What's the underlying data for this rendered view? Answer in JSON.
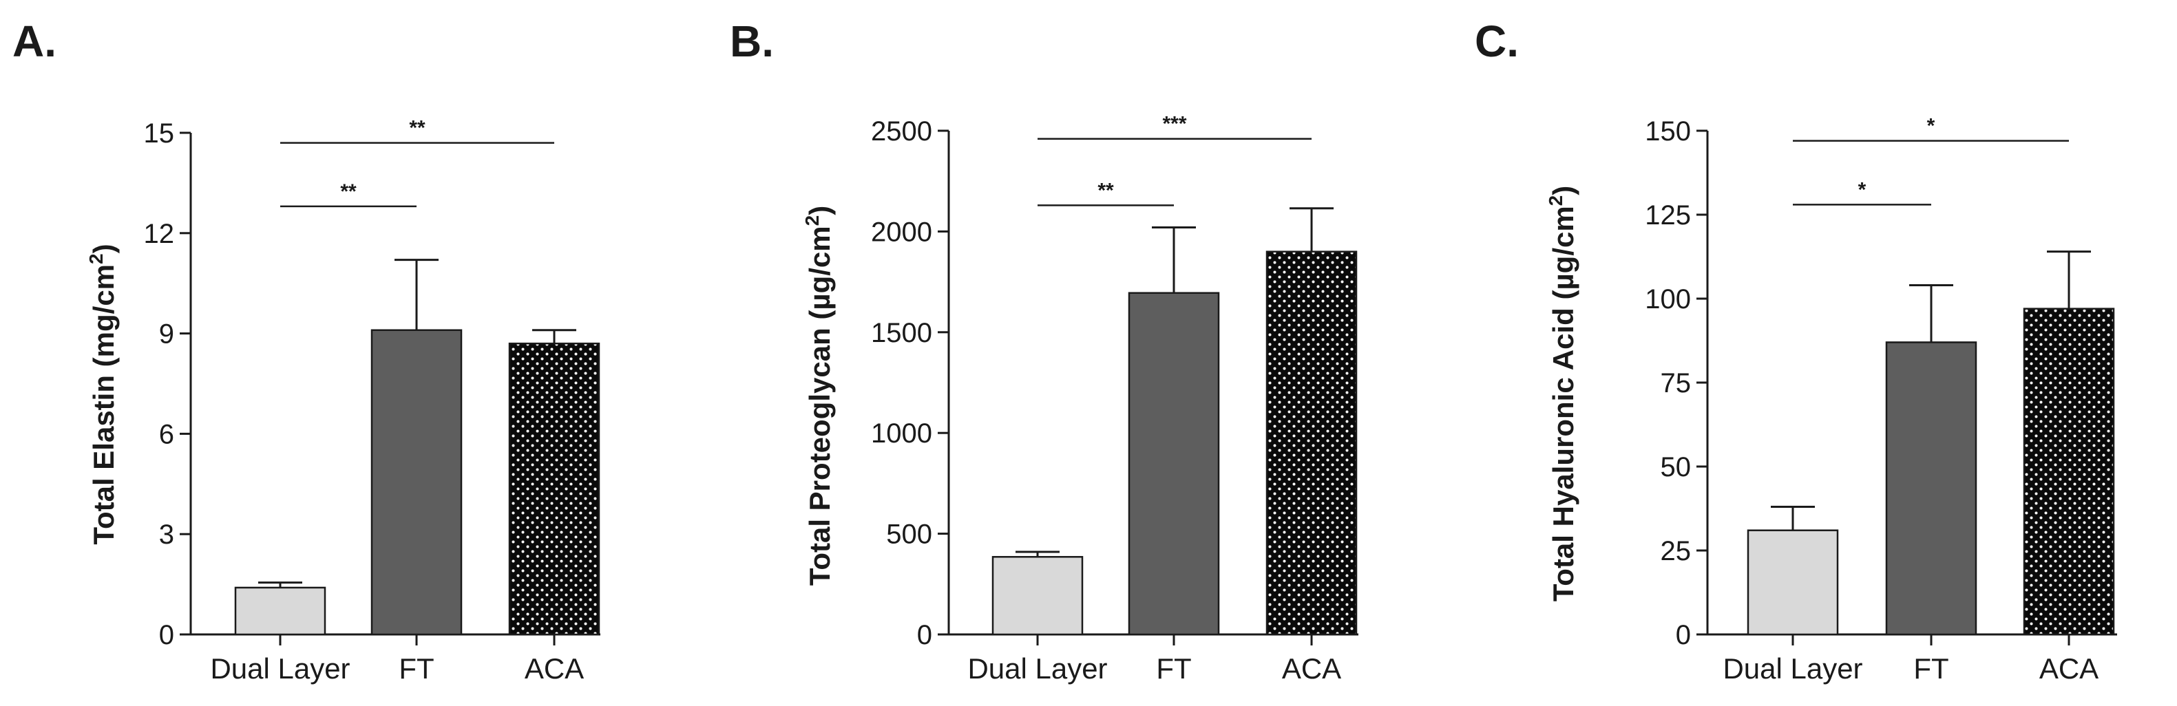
{
  "panels": [
    {
      "label": "A.",
      "chart_data": {
        "type": "bar",
        "categories": [
          "Dual Layer",
          "FT",
          "ACA"
        ],
        "values": [
          1.4,
          9.1,
          8.7
        ],
        "errors": [
          0.15,
          2.1,
          0.4
        ],
        "ylabel_main": "Total Elastin (mg/cm",
        "ylabel_sup": "2",
        "ylabel_tail": ")",
        "xlabel": "",
        "ylim": [
          0,
          15
        ],
        "yticks": [
          "0",
          "3",
          "6",
          "9",
          "12",
          "15"
        ],
        "significance": [
          {
            "from": 0,
            "to": 1,
            "label": "**",
            "y": 12.8
          },
          {
            "from": 0,
            "to": 2,
            "label": "**",
            "y": 14.7
          }
        ],
        "bar_styles": [
          "light-gray",
          "dark-gray",
          "black-dotted"
        ],
        "grid": false,
        "legend": "none"
      }
    },
    {
      "label": "B.",
      "chart_data": {
        "type": "bar",
        "categories": [
          "Dual Layer",
          "FT",
          "ACA"
        ],
        "values": [
          385,
          1695,
          1900
        ],
        "errors": [
          25,
          325,
          215
        ],
        "ylabel_main": "Total Proteoglycan (µg/cm",
        "ylabel_sup": "2",
        "ylabel_tail": ")",
        "xlabel": "",
        "ylim": [
          0,
          2500
        ],
        "yticks": [
          "0",
          "500",
          "1000",
          "1500",
          "2000",
          "2500"
        ],
        "significance": [
          {
            "from": 0,
            "to": 1,
            "label": "**",
            "y": 2130
          },
          {
            "from": 0,
            "to": 2,
            "label": "***",
            "y": 2460
          }
        ],
        "bar_styles": [
          "light-gray",
          "dark-gray",
          "black-dotted"
        ],
        "grid": false,
        "legend": "none"
      }
    },
    {
      "label": "C.",
      "chart_data": {
        "type": "bar",
        "categories": [
          "Dual Layer",
          "FT",
          "ACA"
        ],
        "values": [
          31,
          87,
          97
        ],
        "errors": [
          7,
          17,
          17
        ],
        "ylabel_main": "Total Hyaluronic Acid (µg/cm",
        "ylabel_sup": "2",
        "ylabel_tail": ")",
        "xlabel": "",
        "ylim": [
          0,
          150
        ],
        "yticks": [
          "0",
          "25",
          "50",
          "75",
          "100",
          "125",
          "150"
        ],
        "significance": [
          {
            "from": 0,
            "to": 1,
            "label": "*",
            "y": 128
          },
          {
            "from": 0,
            "to": 2,
            "label": "*",
            "y": 147
          }
        ],
        "bar_styles": [
          "light-gray",
          "dark-gray",
          "black-dotted"
        ],
        "grid": false,
        "legend": "none"
      }
    }
  ],
  "colors": {
    "light-gray": "#d9d9d9",
    "dark-gray": "#5e5e5e",
    "black-dotted": "#0a0a0a",
    "dot": "#ffffff",
    "ink": "#1a1a1a"
  }
}
